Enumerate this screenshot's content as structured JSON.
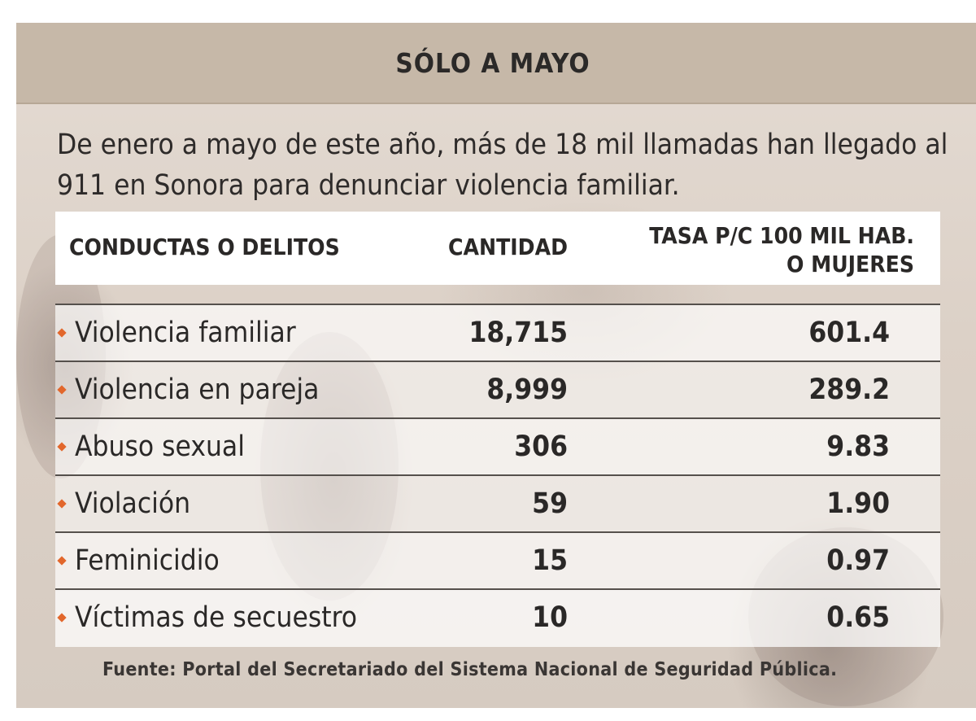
{
  "title": "SÓLO A MAYO",
  "intro": "De enero a mayo de este año, más de 18 mil llamadas han llegado al 911 en Sonora para denunciar violencia familiar.",
  "table": {
    "headers": {
      "conduct": "CONDUCTAS O DELITOS",
      "quantity": "CANTIDAD",
      "rate_line1": "TASA P/C 100 MIL HAB.",
      "rate_line2": "O MUJERES"
    },
    "rows": [
      {
        "label": "Violencia familiar",
        "quantity": "18,715",
        "rate": "601.4"
      },
      {
        "label": "Violencia en pareja",
        "quantity": "8,999",
        "rate": "289.2"
      },
      {
        "label": "Abuso sexual",
        "quantity": "306",
        "rate": "9.83"
      },
      {
        "label": "Violación",
        "quantity": "59",
        "rate": "1.90"
      },
      {
        "label": "Feminicidio",
        "quantity": "15",
        "rate": "0.97"
      },
      {
        "label": "Víctimas de secuestro",
        "quantity": "10",
        "rate": "0.65"
      }
    ]
  },
  "source": "Fuente: Portal del Secretariado del Sistema Nacional de Seguridad Pública.",
  "colors": {
    "title_bar": "#c6b8a8",
    "bullet": "#e2672c",
    "text": "#2a2827"
  }
}
